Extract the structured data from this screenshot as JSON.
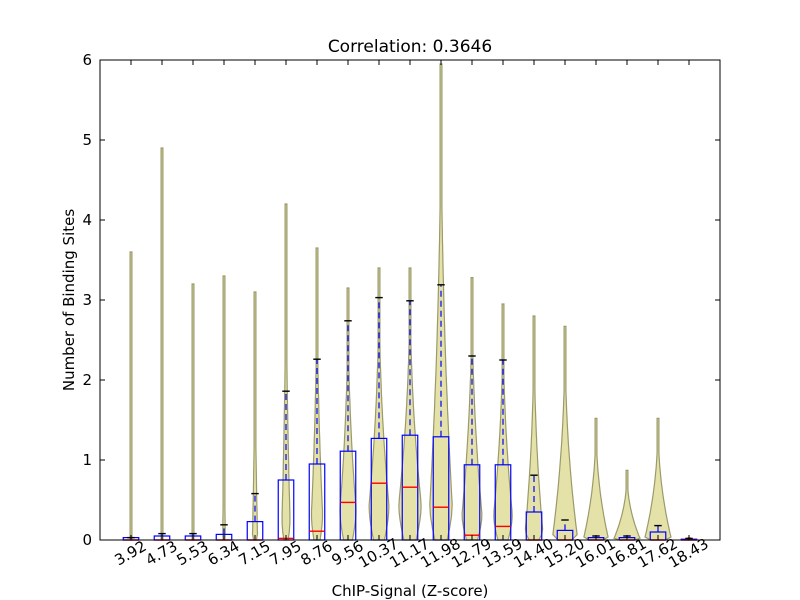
{
  "chart_data": {
    "type": "violin",
    "title": "Correlation: 0.3646",
    "xlabel": "ChIP-Signal (Z-score)",
    "ylabel": "Number of Binding Sites",
    "ylim": [
      0,
      6
    ],
    "yticks": [
      "0",
      "1",
      "2",
      "3",
      "4",
      "5",
      "6"
    ],
    "categories": [
      "3.92",
      "4.73",
      "5.53",
      "6.34",
      "7.15",
      "7.95",
      "8.76",
      "9.56",
      "10.37",
      "11.17",
      "11.98",
      "12.79",
      "13.59",
      "14.40",
      "15.20",
      "16.01",
      "16.81",
      "17.62",
      "18.43"
    ],
    "violin_max": [
      3.6,
      4.9,
      3.2,
      3.3,
      3.1,
      4.2,
      3.65,
      3.15,
      3.4,
      3.4,
      5.95,
      3.28,
      2.95,
      2.8,
      2.67,
      1.52,
      0.87,
      1.52,
      0.03
    ],
    "violin_halfwidth": [
      0.02,
      0.02,
      0.03,
      0.04,
      0.08,
      0.13,
      0.18,
      0.26,
      0.32,
      0.36,
      0.36,
      0.32,
      0.3,
      0.28,
      0.4,
      0.4,
      0.42,
      0.42,
      0.02
    ],
    "box_q1": [
      0,
      0,
      0,
      0,
      0,
      0,
      0,
      0,
      0,
      0,
      0,
      0,
      0,
      0,
      0,
      0,
      0,
      0,
      0
    ],
    "box_median": [
      0,
      0,
      0,
      0,
      0,
      0.02,
      0.11,
      0.47,
      0.71,
      0.66,
      0.41,
      0.06,
      0.17,
      0,
      0,
      0,
      0,
      0,
      0
    ],
    "box_q3": [
      0.03,
      0.05,
      0.05,
      0.07,
      0.23,
      0.75,
      0.95,
      1.11,
      1.27,
      1.31,
      1.29,
      0.94,
      0.94,
      0.35,
      0.12,
      0.03,
      0.03,
      0.1,
      0.01
    ],
    "whisker_high": [
      0.03,
      0.08,
      0.08,
      0.19,
      0.58,
      1.86,
      2.26,
      2.74,
      3.03,
      2.99,
      3.19,
      2.3,
      2.25,
      0.81,
      0.25,
      0.05,
      0.05,
      0.18,
      0.02
    ],
    "colors": {
      "violin_fill": "#e4e2a8",
      "violin_edge": "#9a9a6a",
      "box": "#0000ff",
      "median": "#ff0000",
      "whisker": "#0000ff",
      "cap": "#000000"
    },
    "grid": false,
    "legend": "none"
  }
}
